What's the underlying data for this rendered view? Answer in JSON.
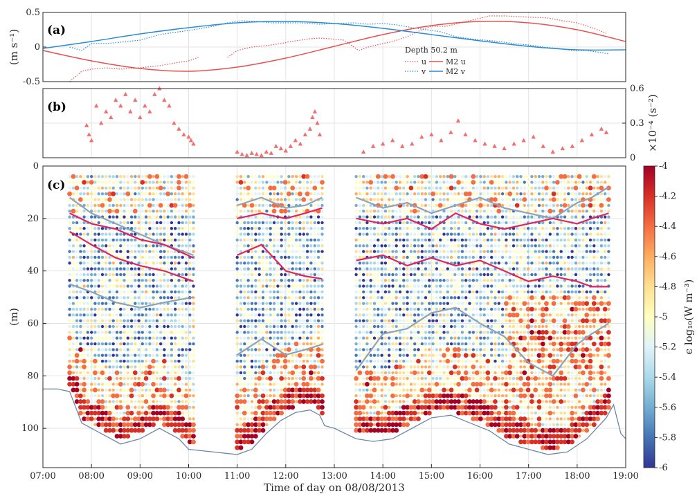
{
  "figure": {
    "xlabel": "Time of day on 08/08/2013",
    "x_ticks": [
      "07:00",
      "08:00",
      "09:00",
      "10:00",
      "11:00",
      "12:00",
      "13:00",
      "14:00",
      "15:00",
      "16:00",
      "17:00",
      "18:00",
      "19:00"
    ],
    "x_range_hours": [
      7,
      19
    ]
  },
  "chart_data": [
    {
      "panel": "a",
      "type": "line",
      "label": "(a)",
      "ylabel": "(m s⁻¹)",
      "ylim": [
        -0.5,
        0.5
      ],
      "yticks": [
        "0.5",
        "0",
        "-0.5"
      ],
      "legend_title": "Depth 50.2 m",
      "legend_position": "center",
      "legend_entries": [
        "u",
        "v",
        "M2 u",
        "M2 v"
      ],
      "colors": {
        "u": "#e8504f",
        "v": "#2a8ad4",
        "M2 u": "#e8504f",
        "M2 v": "#2a8ad4"
      },
      "grid": true,
      "series": [
        {
          "name": "u",
          "style": "dotted",
          "x": [
            7.55,
            7.8,
            8.0,
            8.3,
            8.6,
            9.0,
            9.4,
            9.8,
            10.0,
            10.2
          ],
          "y": [
            -0.5,
            -0.35,
            -0.32,
            -0.3,
            -0.32,
            -0.3,
            -0.27,
            -0.22,
            -0.2,
            -0.15
          ]
        },
        {
          "name": "u",
          "style": "dotted",
          "x": [
            10.8,
            11.0,
            11.3,
            11.6,
            11.9,
            12.1,
            12.3,
            12.5,
            12.7,
            12.9,
            13.2,
            13.4,
            13.5,
            13.7,
            14.0,
            14.2,
            14.5,
            14.8,
            15.0,
            15.3,
            15.6,
            15.9,
            16.2,
            16.5,
            16.8,
            17.1,
            17.4,
            17.7,
            18.0,
            18.3,
            18.6
          ],
          "y": [
            -0.15,
            -0.05,
            0.0,
            0.02,
            0.05,
            0.08,
            0.1,
            0.12,
            0.13,
            0.12,
            0.1,
            0.0,
            -0.05,
            0.0,
            0.05,
            0.08,
            0.15,
            0.25,
            0.3,
            0.3,
            0.35,
            0.4,
            0.45,
            0.45,
            0.44,
            0.43,
            0.42,
            0.38,
            0.35,
            0.28,
            0.2
          ]
        },
        {
          "name": "v",
          "style": "dotted",
          "x": [
            7.55,
            7.8,
            8.0,
            8.3,
            8.6,
            9.0,
            9.4,
            9.8,
            10.1,
            10.5,
            10.8,
            11.1,
            11.4,
            11.7,
            12.0,
            12.3,
            12.7,
            13.4,
            13.7,
            14.0,
            14.3,
            14.6,
            14.9,
            15.2,
            15.5,
            15.8,
            16.1,
            16.4,
            16.7,
            17.0,
            17.3,
            17.6,
            17.9,
            18.2,
            18.5,
            18.65
          ],
          "y": [
            0.0,
            -0.05,
            0.05,
            0.05,
            0.07,
            0.1,
            0.18,
            0.22,
            0.25,
            0.3,
            0.35,
            0.38,
            0.37,
            0.35,
            0.35,
            0.35,
            0.33,
            0.35,
            0.33,
            0.34,
            0.32,
            0.28,
            0.25,
            0.22,
            0.15,
            0.12,
            0.1,
            0.08,
            0.05,
            0.03,
            0.0,
            -0.02,
            -0.05,
            -0.05,
            -0.08,
            -0.1
          ]
        },
        {
          "name": "M2 u",
          "style": "solid",
          "function": "M2 harmonic",
          "x": [
            7,
            8,
            9,
            10,
            11,
            12,
            13,
            14,
            15,
            16,
            17,
            18,
            19
          ],
          "y": [
            -0.05,
            -0.2,
            -0.31,
            -0.35,
            -0.29,
            -0.16,
            0.01,
            0.18,
            0.31,
            0.37,
            0.35,
            0.25,
            0.08
          ]
        },
        {
          "name": "M2 v",
          "style": "solid",
          "function": "M2 harmonic",
          "x": [
            7,
            8,
            9,
            10,
            11,
            12,
            13,
            14,
            15,
            16,
            17,
            18,
            19
          ],
          "y": [
            -0.02,
            0.08,
            0.19,
            0.28,
            0.35,
            0.37,
            0.34,
            0.27,
            0.18,
            0.09,
            0.01,
            -0.04,
            -0.04
          ]
        }
      ]
    },
    {
      "panel": "b",
      "type": "scatter",
      "label": "(b)",
      "ylabel_right": "×10⁻⁴ (s⁻²)",
      "ylim": [
        0,
        0.6
      ],
      "yticks": [
        "0.6",
        "0.3",
        "0"
      ],
      "marker": "triangle",
      "color": "#f07070",
      "grid": true,
      "segments": [
        {
          "x_range": [
            7.9,
            10.1
          ],
          "x": [
            7.9,
            7.95,
            8.0,
            8.1,
            8.2,
            8.3,
            8.4,
            8.5,
            8.6,
            8.7,
            8.8,
            8.9,
            9.0,
            9.1,
            9.2,
            9.3,
            9.4,
            9.5,
            9.6,
            9.7,
            9.8,
            9.9,
            10.0,
            10.05,
            10.1
          ],
          "y": [
            0.28,
            0.2,
            0.15,
            0.45,
            0.3,
            0.4,
            0.35,
            0.5,
            0.45,
            0.55,
            0.4,
            0.5,
            0.35,
            0.45,
            0.4,
            0.55,
            0.6,
            0.5,
            0.45,
            0.3,
            0.25,
            0.2,
            0.18,
            0.15,
            0.12
          ]
        },
        {
          "x_range": [
            11.0,
            12.75
          ],
          "x": [
            11.0,
            11.1,
            11.2,
            11.3,
            11.4,
            11.5,
            11.6,
            11.7,
            11.8,
            11.9,
            12.0,
            12.1,
            12.2,
            12.3,
            12.4,
            12.5,
            12.55,
            12.6,
            12.65,
            12.7
          ],
          "y": [
            0.05,
            0.03,
            0.02,
            0.04,
            0.03,
            0.02,
            0.05,
            0.04,
            0.1,
            0.08,
            0.06,
            0.1,
            0.15,
            0.12,
            0.2,
            0.25,
            0.35,
            0.4,
            0.3,
            0.2
          ]
        },
        {
          "x_range": [
            13.6,
            18.6
          ],
          "x": [
            13.6,
            13.8,
            14.0,
            14.2,
            14.4,
            14.6,
            14.8,
            15.0,
            15.2,
            15.4,
            15.55,
            15.7,
            15.9,
            16.1,
            16.3,
            16.5,
            16.7,
            16.9,
            17.1,
            17.3,
            17.5,
            17.7,
            17.9,
            18.1,
            18.3,
            18.5,
            18.6
          ],
          "y": [
            0.05,
            0.1,
            0.12,
            0.15,
            0.1,
            0.12,
            0.18,
            0.2,
            0.15,
            0.22,
            0.32,
            0.2,
            0.15,
            0.12,
            0.1,
            0.08,
            0.12,
            0.15,
            0.18,
            0.1,
            0.05,
            0.08,
            0.1,
            0.15,
            0.2,
            0.25,
            0.22
          ]
        }
      ]
    },
    {
      "panel": "c",
      "type": "scatter",
      "label": "(c)",
      "ylabel": "(m)",
      "ylim": [
        0,
        115
      ],
      "y_reversed": true,
      "yticks": [
        "0",
        "20",
        "40",
        "60",
        "80",
        "100"
      ],
      "grid": true,
      "colorbar": {
        "label": "ϵ log₁₀(W m⁻³)",
        "range": [
          -6,
          -4
        ],
        "ticks": [
          "-4",
          "-4.2",
          "-4.4",
          "-4.6",
          "-4.8",
          "-5",
          "-5.2",
          "-5.4",
          "-5.6",
          "-5.8",
          "-6"
        ],
        "colormap": [
          "#313695",
          "#4575b4",
          "#74add1",
          "#abd9e9",
          "#e0f3f8",
          "#ffffbf",
          "#fee090",
          "#fdae61",
          "#f46d43",
          "#d73027",
          "#a50026"
        ]
      },
      "profile_segments": [
        {
          "x_start": 7.55,
          "x_end": 10.1
        },
        {
          "x_start": 11.0,
          "x_end": 12.75
        },
        {
          "x_start": 13.45,
          "x_end": 18.65
        }
      ],
      "bottom_depth_line": {
        "color": "#6b87a8",
        "x": [
          7.0,
          7.3,
          7.55,
          7.8,
          8.2,
          8.6,
          9.0,
          9.4,
          9.8,
          10.0,
          10.5,
          11.0,
          11.3,
          11.6,
          11.9,
          12.2,
          12.5,
          12.7,
          12.8,
          13.0,
          13.45,
          13.8,
          14.2,
          14.6,
          15.0,
          15.4,
          15.8,
          16.2,
          16.6,
          17.0,
          17.4,
          17.8,
          18.2,
          18.6,
          18.75,
          18.9,
          19.0
        ],
        "y": [
          85,
          85,
          86,
          98,
          102,
          106,
          104,
          100,
          104,
          108,
          109,
          110,
          108,
          102,
          97,
          94,
          93,
          95,
          99,
          100,
          104,
          105,
          104,
          100,
          96,
          95,
          98,
          101,
          106,
          108,
          110,
          109,
          104,
          96,
          91,
          102,
          104
        ]
      },
      "overlay_lines": [
        {
          "name": "grey-upper",
          "color": "#8ea3b9",
          "x": [
            7.55,
            8.0,
            8.5,
            9.0,
            9.5,
            10.1,
            11.0,
            11.5,
            12.0,
            12.4,
            12.75,
            13.45,
            14.0,
            14.5,
            15.0,
            15.5,
            16.0,
            16.5,
            17.0,
            17.5,
            18.0,
            18.3,
            18.65
          ],
          "y": [
            12,
            18,
            22,
            26,
            30,
            34,
            15,
            12,
            16,
            15,
            12,
            12,
            16,
            14,
            18,
            15,
            12,
            16,
            18,
            20,
            14,
            12,
            8
          ]
        },
        {
          "name": "pink-upper",
          "color": "#e0245e",
          "x": [
            7.55,
            8.0,
            8.5,
            9.0,
            9.5,
            10.1,
            11.0,
            11.5,
            12.0,
            12.4,
            12.75,
            13.45,
            14.0,
            14.5,
            15.0,
            15.5,
            16.0,
            16.5,
            17.0,
            17.5,
            18.0,
            18.3,
            18.65
          ],
          "y": [
            18,
            22,
            24,
            28,
            30,
            35,
            20,
            18,
            20,
            18,
            16,
            20,
            22,
            20,
            24,
            18,
            22,
            24,
            22,
            20,
            22,
            20,
            18
          ]
        },
        {
          "name": "pink-lower",
          "color": "#e0245e",
          "x": [
            7.55,
            8.0,
            8.5,
            9.0,
            9.5,
            10.1,
            11.0,
            11.5,
            12.0,
            12.4,
            12.75,
            13.45,
            14.0,
            14.5,
            15.0,
            15.5,
            16.0,
            16.5,
            17.0,
            17.5,
            18.0,
            18.3,
            18.65
          ],
          "y": [
            25,
            30,
            35,
            38,
            40,
            44,
            34,
            30,
            40,
            42,
            43,
            36,
            34,
            38,
            35,
            38,
            36,
            40,
            44,
            42,
            44,
            46,
            46
          ]
        },
        {
          "name": "grey-lower",
          "color": "#8ea3b9",
          "x": [
            7.55,
            8.0,
            8.5,
            9.0,
            9.5,
            10.1,
            11.0,
            11.5,
            12.0,
            12.4,
            12.75,
            13.45,
            14.0,
            14.5,
            15.0,
            15.5,
            16.0,
            16.5,
            17.0,
            17.5,
            18.0,
            18.3,
            18.65
          ],
          "y": [
            45,
            48,
            52,
            54,
            52,
            50,
            72,
            66,
            72,
            70,
            68,
            78,
            64,
            62,
            56,
            54,
            60,
            65,
            75,
            80,
            68,
            64,
            60
          ]
        }
      ]
    }
  ]
}
